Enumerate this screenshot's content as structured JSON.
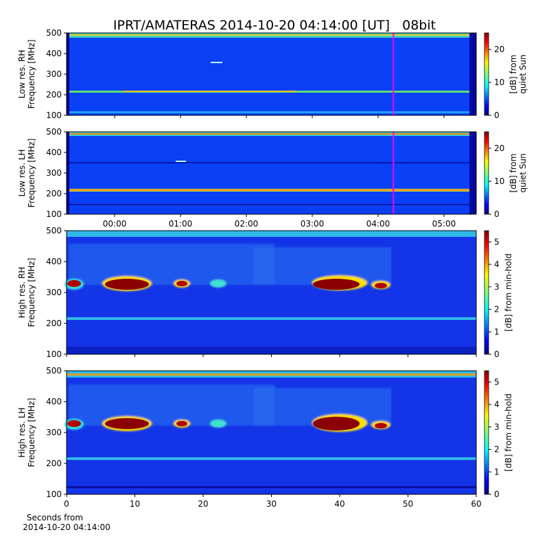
{
  "title": "IPRT/AMATERAS 2014-10-20 04:14:00 [UT]   08bit",
  "chart_data": [
    {
      "type": "heatmap",
      "ylabel": [
        "Low res. RH",
        "Frequency [MHz]"
      ],
      "ylim": [
        100,
        500
      ],
      "yticks": [
        100,
        200,
        300,
        400,
        500
      ],
      "xlim": [
        -0.73,
        5.49
      ],
      "xticks": [
        {
          "value": 0
        },
        {
          "value": 1
        },
        {
          "value": 2
        },
        {
          "value": 3
        },
        {
          "value": 4
        },
        {
          "value": 5
        }
      ],
      "marker_x": 4.233,
      "marker_color": "#ff00ff",
      "colorbar_label": [
        "[dB] from",
        "quiet Sun"
      ],
      "colorbar_lim": [
        0,
        25
      ],
      "colorbar_ticks": [
        0,
        10,
        20
      ]
    },
    {
      "type": "heatmap",
      "ylabel": [
        "Low res. LH",
        "Frequency [MHz]"
      ],
      "ylim": [
        100,
        500
      ],
      "yticks": [
        100,
        200,
        300,
        400,
        500
      ],
      "xlim": [
        -0.73,
        5.49
      ],
      "xticks": [
        {
          "value": 0,
          "label": "00:00"
        },
        {
          "value": 1,
          "label": "01:00"
        },
        {
          "value": 2,
          "label": "02:00"
        },
        {
          "value": 3,
          "label": "03:00"
        },
        {
          "value": 4,
          "label": "04:00"
        },
        {
          "value": 5,
          "label": "05:00"
        }
      ],
      "marker_x": 4.233,
      "marker_color": "#ff00ff",
      "colorbar_label": [
        "[dB] from",
        "quiet Sun"
      ],
      "colorbar_lim": [
        0,
        25
      ],
      "colorbar_ticks": [
        0,
        10,
        20
      ]
    },
    {
      "type": "heatmap",
      "ylabel": [
        "High res. RH",
        "Frequency [MHz]"
      ],
      "ylim": [
        100,
        500
      ],
      "yticks": [
        100,
        200,
        300,
        400,
        500
      ],
      "xlim": [
        0,
        60
      ],
      "xticks": [
        {
          "value": 0
        },
        {
          "value": 10
        },
        {
          "value": 20
        },
        {
          "value": 30
        },
        {
          "value": 40
        },
        {
          "value": 50
        },
        {
          "value": 60
        }
      ],
      "colorbar_label": [
        "[dB] from min-hold"
      ],
      "colorbar_lim": [
        0,
        5.5
      ],
      "colorbar_ticks": [
        0,
        1,
        2,
        3,
        4,
        5
      ]
    },
    {
      "type": "heatmap",
      "ylabel": [
        "High res. LH",
        "Frequency [MHz]"
      ],
      "ylim": [
        100,
        500
      ],
      "yticks": [
        100,
        200,
        300,
        400,
        500
      ],
      "xlim": [
        0,
        60
      ],
      "xticks": [
        0,
        10,
        20,
        30,
        40,
        50,
        60
      ],
      "xlabel": [
        "Seconds from",
        "2014-10-20 04:14:00"
      ],
      "colorbar_label": [
        "[dB] from min-hold"
      ],
      "colorbar_lim": [
        0,
        5.5
      ],
      "colorbar_ticks": [
        0,
        1,
        2,
        3,
        4,
        5
      ]
    }
  ]
}
